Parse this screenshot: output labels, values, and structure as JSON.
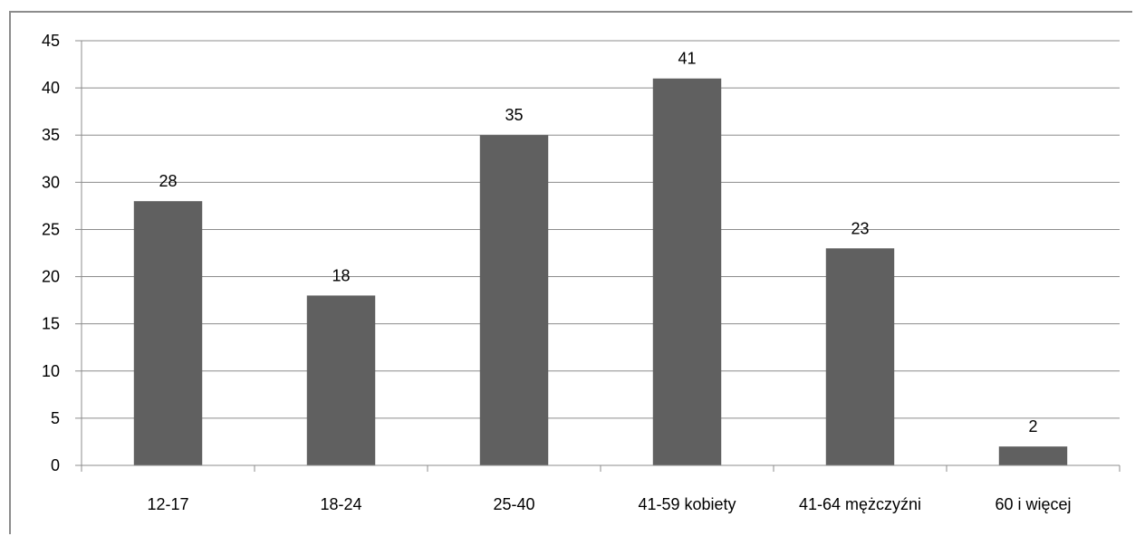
{
  "chart_data": {
    "type": "bar",
    "categories": [
      "12-17",
      "18-24",
      "25-40",
      "41-59 kobiety",
      "41-64 mężczyźni",
      "60 i więcej"
    ],
    "values": [
      28,
      18,
      35,
      41,
      23,
      2
    ],
    "data_labels": [
      "28",
      "18",
      "35",
      "41",
      "23",
      "2"
    ],
    "y_ticks": [
      "0",
      "5",
      "10",
      "15",
      "20",
      "25",
      "30",
      "35",
      "40",
      "45"
    ],
    "ylim": [
      0,
      45
    ],
    "ystep": 5,
    "grid": true,
    "legend": "none",
    "bar_color": "#606060",
    "grid_color": "#8c8c8c"
  }
}
